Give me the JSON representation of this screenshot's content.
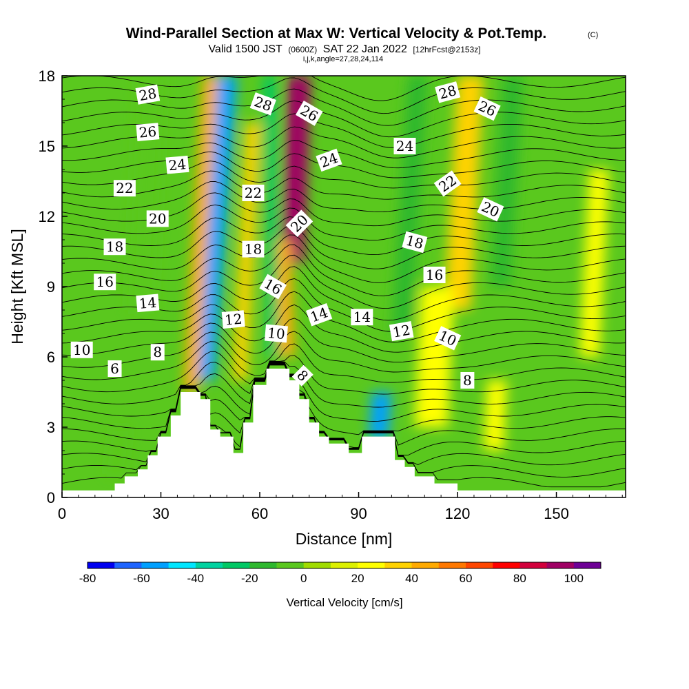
{
  "title": {
    "main": "Wind-Parallel Section at Max W: Vertical Velocity & Pot.Temp.",
    "copyright": "(C)",
    "valid_prefix": "Valid 1500 JST",
    "valid_utc": "(0600Z)",
    "valid_date": "SAT 22 Jan 2022",
    "forecast": "[12hrFcst@2153z]",
    "indices": "i,j,k,angle=27,28,24,114"
  },
  "chart_data": {
    "type": "heatmap",
    "xlabel": "Distance [nm]",
    "ylabel": "Height [Kft MSL]",
    "xlim": [
      0,
      171
    ],
    "ylim": [
      0,
      18
    ],
    "x_ticks": [
      0,
      30,
      60,
      90,
      120,
      150
    ],
    "y_ticks": [
      0,
      3,
      6,
      9,
      12,
      15,
      18
    ],
    "colorbar": {
      "label": "Vertical Velocity [cm/s]",
      "tick_labels": [
        "-80",
        "-60",
        "-40",
        "-20",
        "0",
        "20",
        "40",
        "60",
        "80",
        "100"
      ],
      "levels": [
        -80,
        -70,
        -60,
        -50,
        -40,
        -30,
        -20,
        -10,
        0,
        10,
        20,
        30,
        40,
        50,
        60,
        70,
        80,
        90,
        100,
        110
      ],
      "colors": [
        "#0000f0",
        "#1e64ff",
        "#00a0ff",
        "#00e6ff",
        "#00d2a0",
        "#00c864",
        "#2eb82e",
        "#5ac81e",
        "#a0dc00",
        "#dcf000",
        "#ffff00",
        "#ffd200",
        "#ffaa00",
        "#ff7800",
        "#ff4600",
        "#ff0000",
        "#d2003c",
        "#a00064",
        "#6e0096"
      ]
    },
    "terrain_kft": [
      [
        0,
        0.3
      ],
      [
        16,
        0.3
      ],
      [
        16,
        0.6
      ],
      [
        19,
        0.6
      ],
      [
        19,
        0.9
      ],
      [
        23,
        0.9
      ],
      [
        23,
        1.2
      ],
      [
        26,
        1.2
      ],
      [
        26,
        1.8
      ],
      [
        29,
        1.8
      ],
      [
        29,
        2.6
      ],
      [
        33,
        2.6
      ],
      [
        33,
        3.5
      ],
      [
        36,
        3.5
      ],
      [
        36,
        4.5
      ],
      [
        42,
        4.5
      ],
      [
        42,
        4.2
      ],
      [
        45,
        4.2
      ],
      [
        45,
        2.9
      ],
      [
        48,
        2.9
      ],
      [
        48,
        2.6
      ],
      [
        52,
        2.6
      ],
      [
        52,
        1.9
      ],
      [
        55,
        1.9
      ],
      [
        55,
        3.2
      ],
      [
        58,
        3.2
      ],
      [
        58,
        4.8
      ],
      [
        62,
        4.8
      ],
      [
        62,
        5.5
      ],
      [
        69,
        5.5
      ],
      [
        69,
        5.0
      ],
      [
        72,
        5.0
      ],
      [
        72,
        4.2
      ],
      [
        75,
        4.2
      ],
      [
        75,
        3.2
      ],
      [
        78,
        3.2
      ],
      [
        78,
        2.6
      ],
      [
        81,
        2.6
      ],
      [
        81,
        2.3
      ],
      [
        87,
        2.3
      ],
      [
        87,
        1.9
      ],
      [
        91,
        1.9
      ],
      [
        91,
        2.6
      ],
      [
        101,
        2.6
      ],
      [
        101,
        1.6
      ],
      [
        104,
        1.6
      ],
      [
        104,
        1.3
      ],
      [
        107,
        1.3
      ],
      [
        107,
        0.9
      ],
      [
        113,
        0.9
      ],
      [
        113,
        0.6
      ],
      [
        120,
        0.6
      ],
      [
        120,
        0.3
      ],
      [
        171,
        0.3
      ]
    ],
    "w_bands": [
      {
        "x": 43,
        "y0": 5.0,
        "x1": 50,
        "y1": 18,
        "w": 3.2,
        "value": -60
      },
      {
        "x": 39,
        "y0": 4.5,
        "x1": 45,
        "y1": 18,
        "w": 2.2,
        "value": 40
      },
      {
        "x": 54,
        "y0": 5.0,
        "x1": 58,
        "y1": 16,
        "w": 2.2,
        "value": 30
      },
      {
        "x": 70,
        "y0": 10.0,
        "x1": 72,
        "y1": 18,
        "w": 3.5,
        "value": 90
      },
      {
        "x": 68,
        "y0": 6.0,
        "x1": 67,
        "y1": 11,
        "w": 2.5,
        "value": 40
      },
      {
        "x": 64,
        "y0": 6.0,
        "x1": 63,
        "y1": 18,
        "w": 2.0,
        "value": -30
      },
      {
        "x": 96,
        "y0": 2.5,
        "x1": 97,
        "y1": 4.5,
        "w": 3.0,
        "value": -60
      },
      {
        "x": 120,
        "y0": 8.0,
        "x1": 124,
        "y1": 18,
        "w": 4.0,
        "value": 30
      },
      {
        "x": 112,
        "y0": 3.0,
        "x1": 114,
        "y1": 9,
        "w": 5.0,
        "value": 20
      },
      {
        "x": 131,
        "y0": 2.0,
        "x1": 132,
        "y1": 5,
        "w": 3.0,
        "value": 20
      },
      {
        "x": 103,
        "y0": 7.0,
        "x1": 108,
        "y1": 18,
        "w": 3.0,
        "value": -20
      },
      {
        "x": 133,
        "y0": 9.0,
        "x1": 137,
        "y1": 18,
        "w": 3.0,
        "value": -20
      },
      {
        "x": 24,
        "y0": 8.0,
        "x1": 27,
        "y1": 18,
        "w": 4.0,
        "value": -10
      },
      {
        "x": 16,
        "y0": 1.0,
        "x1": 18,
        "y1": 3,
        "w": 2.5,
        "value": -10
      },
      {
        "x": 160,
        "y0": 6.0,
        "x1": 163,
        "y1": 14,
        "w": 3.0,
        "value": 20
      }
    ],
    "theta_labels": [
      {
        "text": "28",
        "x": 26,
        "y": 17.2,
        "rot": -10
      },
      {
        "text": "26",
        "x": 26,
        "y": 15.6,
        "rot": -5
      },
      {
        "text": "24",
        "x": 35,
        "y": 14.2,
        "rot": -5
      },
      {
        "text": "22",
        "x": 19,
        "y": 13.2,
        "rot": 0
      },
      {
        "text": "20",
        "x": 29,
        "y": 11.9,
        "rot": 0
      },
      {
        "text": "18",
        "x": 16,
        "y": 10.7,
        "rot": 0
      },
      {
        "text": "16",
        "x": 13,
        "y": 9.2,
        "rot": 0
      },
      {
        "text": "14",
        "x": 26,
        "y": 8.3,
        "rot": -5
      },
      {
        "text": "10",
        "x": 6,
        "y": 6.3,
        "rot": 0
      },
      {
        "text": "8",
        "x": 29,
        "y": 6.2,
        "rot": 0
      },
      {
        "text": "6",
        "x": 16,
        "y": 5.5,
        "rot": 0
      },
      {
        "text": "28",
        "x": 61,
        "y": 16.8,
        "rot": 20
      },
      {
        "text": "26",
        "x": 75,
        "y": 16.4,
        "rot": 30
      },
      {
        "text": "24",
        "x": 81,
        "y": 14.4,
        "rot": -20
      },
      {
        "text": "22",
        "x": 58,
        "y": 13.0,
        "rot": 0
      },
      {
        "text": "20",
        "x": 72,
        "y": 11.7,
        "rot": -45
      },
      {
        "text": "18",
        "x": 58,
        "y": 10.6,
        "rot": 0
      },
      {
        "text": "16",
        "x": 64,
        "y": 9.0,
        "rot": 30
      },
      {
        "text": "14",
        "x": 78,
        "y": 7.8,
        "rot": -20
      },
      {
        "text": "12",
        "x": 52,
        "y": 7.6,
        "rot": -5
      },
      {
        "text": "10",
        "x": 65,
        "y": 7.0,
        "rot": 5
      },
      {
        "text": "8",
        "x": 73,
        "y": 5.2,
        "rot": 45
      },
      {
        "text": "14",
        "x": 91,
        "y": 7.7,
        "rot": 0
      },
      {
        "text": "24",
        "x": 104,
        "y": 15.0,
        "rot": 0
      },
      {
        "text": "28",
        "x": 117,
        "y": 17.3,
        "rot": -15
      },
      {
        "text": "26",
        "x": 129,
        "y": 16.6,
        "rot": 25
      },
      {
        "text": "22",
        "x": 117,
        "y": 13.4,
        "rot": -35
      },
      {
        "text": "20",
        "x": 130,
        "y": 12.3,
        "rot": 25
      },
      {
        "text": "18",
        "x": 107,
        "y": 10.9,
        "rot": 15
      },
      {
        "text": "16",
        "x": 113,
        "y": 9.5,
        "rot": 0
      },
      {
        "text": "12",
        "x": 103,
        "y": 7.1,
        "rot": -10
      },
      {
        "text": "10",
        "x": 117,
        "y": 6.8,
        "rot": 25
      },
      {
        "text": "8",
        "x": 123,
        "y": 5.0,
        "rot": 0
      }
    ]
  }
}
